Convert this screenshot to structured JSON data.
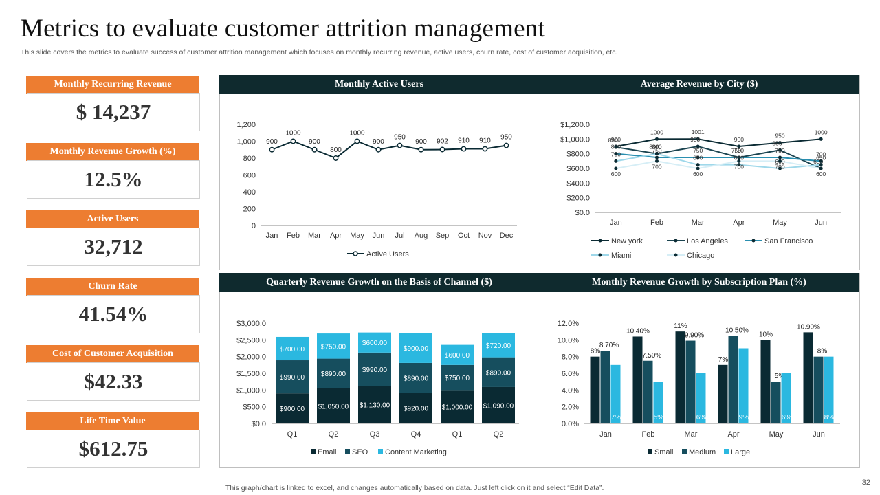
{
  "title": "Metrics to evaluate customer attrition management",
  "subtitle": "This slide covers the metrics to evaluate success of customer attrition management which focuses on monthly recurring revenue, active users, churn rate, cost of customer acquisition, etc.",
  "kpis": [
    {
      "label": "Monthly Recurring Revenue",
      "value": "$ 14,237"
    },
    {
      "label": "Monthly Revenue Growth (%)",
      "value": "12.5%"
    },
    {
      "label": "Active Users",
      "value": "32,712"
    },
    {
      "label": "Churn Rate",
      "value": "41.54%"
    },
    {
      "label": "Cost of Customer Acquisition",
      "value": "$42.33"
    },
    {
      "label": "Life Time Value",
      "value": "$612.75"
    }
  ],
  "footer": "This graph/chart is linked to excel, and changes automatically based on data. Just left click on it and select “Edit Data”.",
  "page_number": "32",
  "colors": {
    "orange": "#ed7d31",
    "header_dark": "#0f2a2e",
    "series_dark": "#0a2a33",
    "series_mid": "#164e5e",
    "series_light": "#2bb8e0"
  },
  "chart_data": [
    {
      "id": "active_users",
      "type": "line",
      "title": "Monthly Active Users",
      "categories": [
        "Jan",
        "Feb",
        "Mar",
        "Apr",
        "May",
        "Jun",
        "Jul",
        "Aug",
        "Sep",
        "Oct",
        "Nov",
        "Dec"
      ],
      "series": [
        {
          "name": "Active Users",
          "values": [
            900,
            1000,
            900,
            800,
            1000,
            900,
            950,
            900,
            902,
            910,
            910,
            950
          ]
        }
      ],
      "ylim": [
        0,
        1200
      ],
      "yticks": [
        "0",
        "200",
        "400",
        "600",
        "800",
        "1,000",
        "1,200"
      ],
      "legend": "bottom"
    },
    {
      "id": "revenue_by_city",
      "type": "line",
      "title": "Average Revenue by City ($)",
      "categories": [
        "Jan",
        "Feb",
        "Mar",
        "Apr",
        "May",
        "Jun"
      ],
      "series": [
        {
          "name": "New york",
          "values": [
            900,
            1000,
            1001,
            900,
            950,
            1000
          ]
        },
        {
          "name": "Los Angeles",
          "values": [
            890,
            800,
            900,
            750,
            850,
            600
          ]
        },
        {
          "name": "San Francisco",
          "values": [
            800,
            750,
            750,
            750,
            750,
            700
          ]
        },
        {
          "name": "Miami",
          "values": [
            700,
            800,
            650,
            650,
            600,
            650
          ]
        },
        {
          "name": "Chicago",
          "values": [
            600,
            700,
            600,
            700,
            700,
            600
          ]
        }
      ],
      "ylim": [
        0,
        1200
      ],
      "yticks": [
        "$0.0",
        "$200.0",
        "$400.0",
        "$600.0",
        "$800.0",
        "$1,000.0",
        "$1,200.0"
      ],
      "legend": "bottom"
    },
    {
      "id": "quarterly_channel",
      "type": "bar",
      "stacked": true,
      "title": "Quarterly  Revenue Growth  on the Basis of Channel ($)",
      "categories": [
        "Q1",
        "Q2",
        "Q3",
        "Q4",
        "Q1",
        "Q2"
      ],
      "series": [
        {
          "name": "Email",
          "values": [
            900,
            1050,
            1130,
            920,
            1000,
            1090
          ],
          "labels": [
            "$900.00",
            "$1,050.00",
            "$1,130.00",
            "$920.00",
            "$1,000.00",
            "$1,090.00"
          ]
        },
        {
          "name": "SEO",
          "values": [
            990,
            890,
            990,
            890,
            750,
            890
          ],
          "labels": [
            "$990.00",
            "$890.00",
            "$990.00",
            "$890.00",
            "$750.00",
            "$890.00"
          ]
        },
        {
          "name": "Content Marketing",
          "values": [
            700,
            750,
            600,
            900,
            600,
            720
          ],
          "labels": [
            "$700.00",
            "$750.00",
            "$600.00",
            "$900.00",
            "$600.00",
            "$720.00"
          ]
        }
      ],
      "ylim": [
        0,
        3000
      ],
      "yticks": [
        "$0.0",
        "$500.0",
        "$1,000.0",
        "$1,500.0",
        "$2,000.0",
        "$2,500.0",
        "$3,000.0"
      ],
      "legend": "bottom"
    },
    {
      "id": "subscription_growth",
      "type": "bar",
      "title": "Monthly  Revenue Growth  by Subscription  Plan  (%)",
      "categories": [
        "Jan",
        "Feb",
        "Mar",
        "Apr",
        "May",
        "Jun"
      ],
      "series": [
        {
          "name": "Small",
          "values": [
            8,
            10.4,
            11,
            7,
            10,
            10.9
          ],
          "labels": [
            "8%",
            "10.40%",
            "11%",
            "7%",
            "10%",
            "10.90%"
          ]
        },
        {
          "name": "Medium",
          "values": [
            8.7,
            7.5,
            9.9,
            10.5,
            5,
            8
          ],
          "labels": [
            "8.70%",
            "7.50%",
            "9.90%",
            "10.50%",
            "5%",
            "8%"
          ]
        },
        {
          "name": "Large",
          "values": [
            7,
            5,
            6,
            9,
            6,
            8
          ],
          "labels": [
            "7%",
            "5%",
            "6%",
            "9%",
            "6%",
            "8%"
          ]
        }
      ],
      "ylim": [
        0,
        12
      ],
      "yticks": [
        "0.0%",
        "2.0%",
        "4.0%",
        "6.0%",
        "8.0%",
        "10.0%",
        "12.0%"
      ],
      "legend": "bottom"
    }
  ]
}
